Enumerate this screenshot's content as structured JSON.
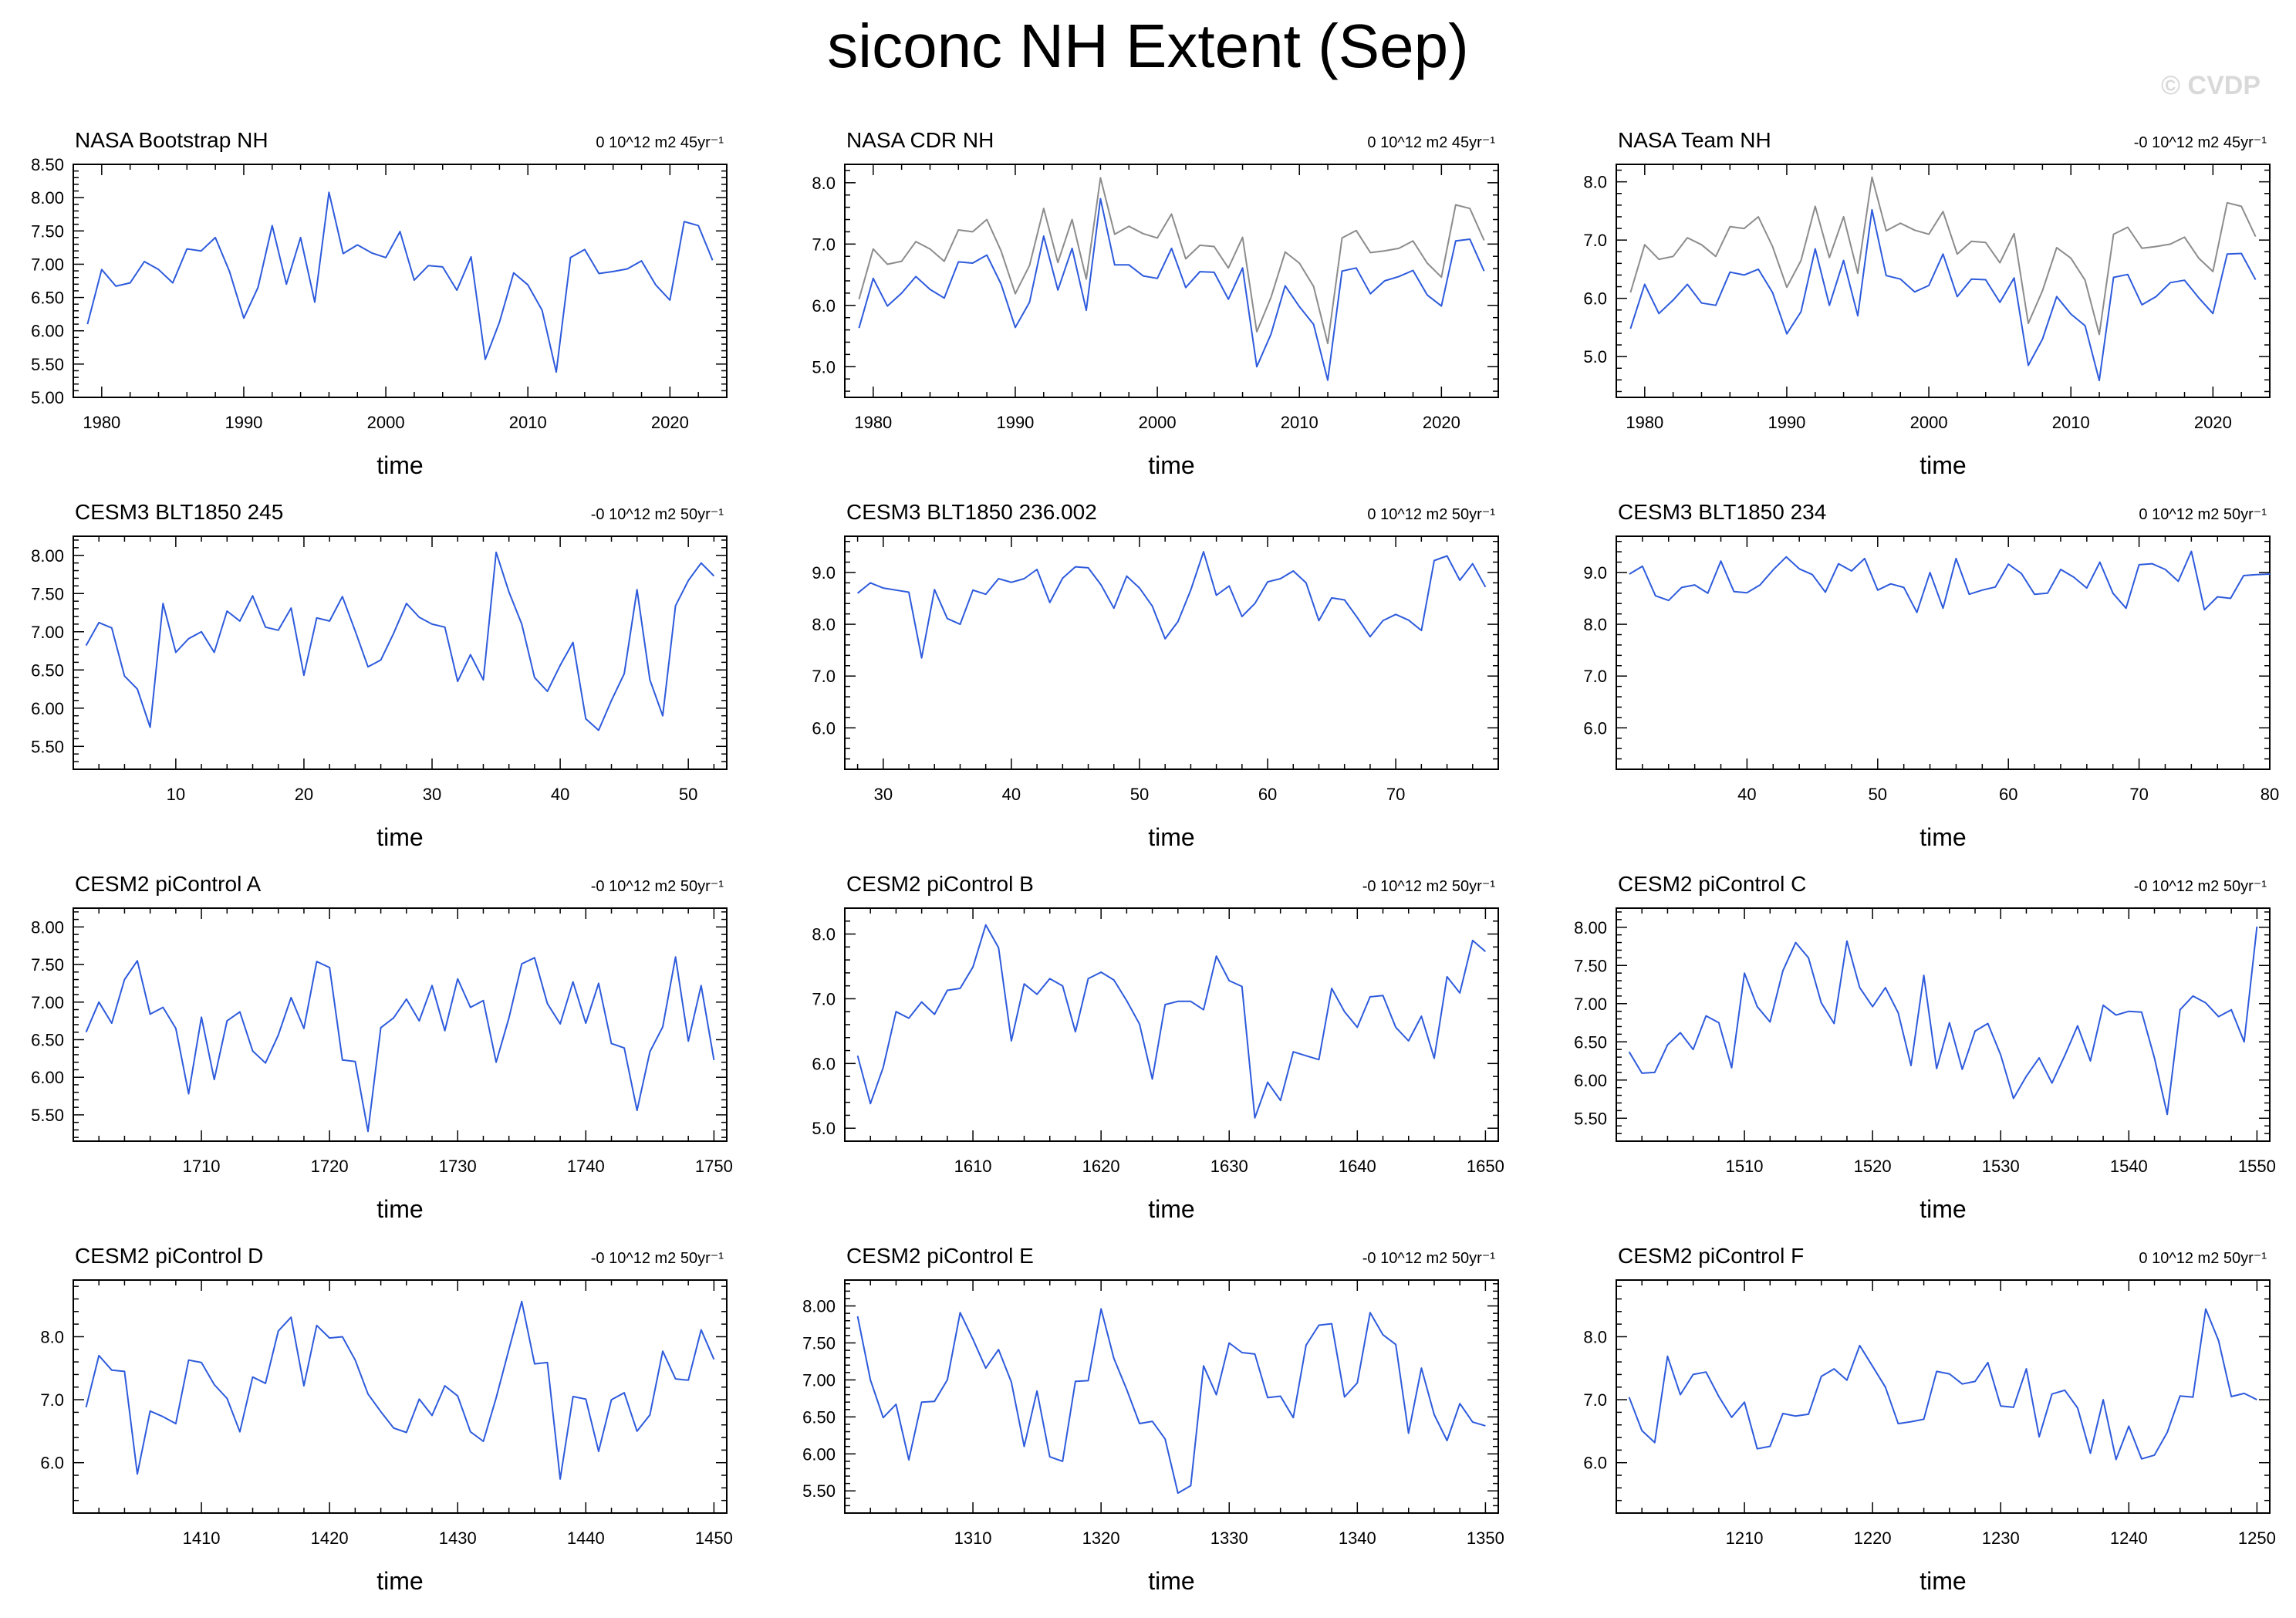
{
  "page": {
    "title": "siconc NH Extent (Sep)",
    "watermark": "© CVDP"
  },
  "chart_data": [
    {
      "type": "line",
      "title": "NASA Bootstrap NH",
      "trend": "0 10^12 m2 45yr⁻¹",
      "xlabel": "time",
      "xlim": [
        1978,
        2024
      ],
      "xticks": [
        1980,
        1990,
        2000,
        2010,
        2020
      ],
      "ylim": [
        5.0,
        8.5
      ],
      "yticks": [
        "8.50",
        "8.00",
        "7.50",
        "7.00",
        "6.50",
        "6.00",
        "5.50",
        "5.00"
      ],
      "x_start": 1979,
      "series": [
        {
          "color": "#2e5bdc",
          "values": [
            6.1,
            6.92,
            6.67,
            6.72,
            7.04,
            6.92,
            6.72,
            7.23,
            7.2,
            7.4,
            6.89,
            6.19,
            6.65,
            7.58,
            6.7,
            7.4,
            6.43,
            8.08,
            7.16,
            7.29,
            7.17,
            7.1,
            7.49,
            6.76,
            6.98,
            6.96,
            6.61,
            7.11,
            5.57,
            6.13,
            6.87,
            6.69,
            6.31,
            5.38,
            7.1,
            7.22,
            6.86,
            6.89,
            6.93,
            7.05,
            6.69,
            6.46,
            7.64,
            7.58,
            7.06
          ]
        }
      ]
    },
    {
      "type": "line",
      "title": "NASA CDR NH",
      "trend": "0 10^12 m2 45yr⁻¹",
      "xlabel": "time",
      "xlim": [
        1978,
        2024
      ],
      "xticks": [
        1980,
        1990,
        2000,
        2010,
        2020
      ],
      "ylim": [
        4.5,
        8.3
      ],
      "yticks": [
        "8.0",
        "7.0",
        "6.0",
        "5.0"
      ],
      "x_start": 1979,
      "series": [
        {
          "color": "#8c8c8c",
          "values": [
            6.1,
            6.92,
            6.67,
            6.72,
            7.04,
            6.92,
            6.72,
            7.23,
            7.2,
            7.4,
            6.89,
            6.19,
            6.65,
            7.58,
            6.7,
            7.4,
            6.43,
            8.08,
            7.16,
            7.29,
            7.17,
            7.1,
            7.49,
            6.76,
            6.98,
            6.96,
            6.61,
            7.11,
            5.57,
            6.13,
            6.87,
            6.69,
            6.31,
            5.38,
            7.1,
            7.22,
            6.86,
            6.89,
            6.93,
            7.05,
            6.69,
            6.46,
            7.64,
            7.58,
            7.06
          ]
        },
        {
          "color": "#2e5bdc",
          "values": [
            5.63,
            6.44,
            5.99,
            6.2,
            6.47,
            6.26,
            6.12,
            6.71,
            6.69,
            6.82,
            6.35,
            5.64,
            6.05,
            7.13,
            6.25,
            6.93,
            5.92,
            7.74,
            6.66,
            6.66,
            6.48,
            6.44,
            6.93,
            6.29,
            6.55,
            6.54,
            6.1,
            6.61,
            5.0,
            5.53,
            6.32,
            5.98,
            5.69,
            4.78,
            6.56,
            6.61,
            6.19,
            6.4,
            6.47,
            6.57,
            6.17,
            5.99,
            7.05,
            7.08,
            6.56
          ]
        }
      ]
    },
    {
      "type": "line",
      "title": "NASA Team NH",
      "trend": "-0 10^12 m2 45yr⁻¹",
      "xlabel": "time",
      "xlim": [
        1978,
        2024
      ],
      "xticks": [
        1980,
        1990,
        2000,
        2010,
        2020
      ],
      "ylim": [
        4.3,
        8.3
      ],
      "yticks": [
        "8.0",
        "7.0",
        "6.0",
        "5.0"
      ],
      "x_start": 1979,
      "series": [
        {
          "color": "#8c8c8c",
          "values": [
            6.1,
            6.92,
            6.67,
            6.72,
            7.04,
            6.92,
            6.72,
            7.23,
            7.2,
            7.4,
            6.89,
            6.19,
            6.65,
            7.58,
            6.7,
            7.4,
            6.43,
            8.08,
            7.16,
            7.29,
            7.17,
            7.1,
            7.49,
            6.76,
            6.98,
            6.96,
            6.61,
            7.11,
            5.57,
            6.13,
            6.87,
            6.69,
            6.31,
            5.38,
            7.1,
            7.22,
            6.86,
            6.89,
            6.93,
            7.05,
            6.69,
            6.46,
            7.64,
            7.58,
            7.06
          ]
        },
        {
          "color": "#2e5bdc",
          "values": [
            5.48,
            6.24,
            5.74,
            5.97,
            6.24,
            5.92,
            5.88,
            6.45,
            6.4,
            6.5,
            6.1,
            5.39,
            5.77,
            6.85,
            5.88,
            6.65,
            5.7,
            7.52,
            6.39,
            6.33,
            6.11,
            6.22,
            6.76,
            6.03,
            6.33,
            6.32,
            5.93,
            6.35,
            4.85,
            5.3,
            6.03,
            5.73,
            5.53,
            4.59,
            6.36,
            6.41,
            5.89,
            6.03,
            6.27,
            6.31,
            6.01,
            5.74,
            6.76,
            6.77,
            6.32
          ]
        }
      ]
    },
    {
      "type": "line",
      "title": "CESM3 BLT1850 245",
      "trend": "-0 10^12 m2 50yr⁻¹",
      "xlabel": "time",
      "xlim": [
        2,
        53
      ],
      "xticks": [
        10,
        20,
        30,
        40,
        50
      ],
      "ylim": [
        5.2,
        8.25
      ],
      "yticks": [
        "8.00",
        "7.50",
        "7.00",
        "6.50",
        "6.00",
        "5.50"
      ],
      "x_start": 3,
      "series": [
        {
          "color": "#2e5bdc",
          "values": [
            6.82,
            7.12,
            7.05,
            6.42,
            6.25,
            5.75,
            7.37,
            6.73,
            6.91,
            7.0,
            6.73,
            7.27,
            7.14,
            7.47,
            7.06,
            7.02,
            7.31,
            6.43,
            7.18,
            7.14,
            7.46,
            7.01,
            6.54,
            6.63,
            6.98,
            7.37,
            7.19,
            7.1,
            7.06,
            6.35,
            6.7,
            6.37,
            8.04,
            7.52,
            7.1,
            6.4,
            6.22,
            6.56,
            6.86,
            5.86,
            5.71,
            6.1,
            6.45,
            7.55,
            6.37,
            5.9,
            7.34,
            7.67,
            7.9,
            7.73
          ]
        }
      ]
    },
    {
      "type": "line",
      "title": "CESM3 BLT1850 236.002",
      "trend": "0 10^12 m2 50yr⁻¹",
      "xlabel": "time",
      "xlim": [
        27,
        78
      ],
      "xticks": [
        30,
        40,
        50,
        60,
        70
      ],
      "ylim": [
        5.2,
        9.7
      ],
      "yticks": [
        "9.0",
        "8.0",
        "7.0",
        "6.0"
      ],
      "x_start": 28,
      "series": [
        {
          "color": "#2e5bdc",
          "values": [
            8.6,
            8.8,
            8.7,
            8.66,
            8.62,
            7.35,
            8.67,
            8.11,
            8.0,
            8.66,
            8.58,
            8.88,
            8.81,
            8.88,
            9.06,
            8.42,
            8.89,
            9.11,
            9.09,
            8.76,
            8.31,
            8.93,
            8.7,
            8.35,
            7.72,
            8.05,
            8.66,
            9.4,
            8.56,
            8.74,
            8.15,
            8.4,
            8.82,
            8.88,
            9.03,
            8.8,
            8.07,
            8.51,
            8.47,
            8.13,
            7.76,
            8.07,
            8.19,
            8.08,
            7.88,
            9.23,
            9.32,
            8.85,
            9.17,
            8.72
          ]
        }
      ]
    },
    {
      "type": "line",
      "title": "CESM3 BLT1850 234",
      "trend": "0 10^12 m2 50yr⁻¹",
      "xlabel": "time",
      "xlim": [
        30,
        80
      ],
      "xticks": [
        40,
        50,
        60,
        70,
        80
      ],
      "ylim": [
        5.2,
        9.7
      ],
      "yticks": [
        "9.0",
        "8.0",
        "7.0",
        "6.0"
      ],
      "x_start": 31,
      "series": [
        {
          "color": "#2e5bdc",
          "values": [
            8.97,
            9.12,
            8.55,
            8.46,
            8.71,
            8.76,
            8.6,
            9.22,
            8.63,
            8.61,
            8.76,
            9.05,
            9.3,
            9.07,
            8.96,
            8.62,
            9.17,
            9.03,
            9.27,
            8.66,
            8.78,
            8.71,
            8.23,
            9.0,
            8.31,
            9.27,
            8.58,
            8.66,
            8.72,
            9.16,
            8.98,
            8.58,
            8.6,
            9.06,
            8.91,
            8.7,
            9.2,
            8.6,
            8.31,
            9.15,
            9.17,
            9.06,
            8.83,
            9.41,
            8.28,
            8.53,
            8.5,
            8.94,
            8.96,
            8.97
          ]
        }
      ]
    },
    {
      "type": "line",
      "title": "CESM2 piControl A",
      "trend": "-0 10^12 m2 50yr⁻¹",
      "xlabel": "time",
      "xlim": [
        1700,
        1751
      ],
      "xticks": [
        1710,
        1720,
        1730,
        1740,
        1750
      ],
      "ylim": [
        5.15,
        8.25
      ],
      "yticks": [
        "8.00",
        "7.50",
        "7.00",
        "6.50",
        "6.00",
        "5.50"
      ],
      "x_start": 1701,
      "series": [
        {
          "color": "#2e5bdc",
          "values": [
            6.6,
            7.0,
            6.72,
            7.3,
            7.55,
            6.84,
            6.93,
            6.65,
            5.78,
            6.8,
            5.97,
            6.75,
            6.87,
            6.35,
            6.19,
            6.56,
            7.06,
            6.65,
            7.54,
            7.46,
            6.23,
            6.21,
            5.28,
            6.66,
            6.79,
            7.04,
            6.75,
            7.22,
            6.62,
            7.31,
            6.93,
            7.02,
            6.2,
            6.79,
            7.51,
            7.59,
            6.98,
            6.71,
            7.27,
            6.72,
            7.25,
            6.45,
            6.39,
            5.56,
            6.34,
            6.67,
            7.6,
            6.48,
            7.22,
            6.23
          ]
        }
      ]
    },
    {
      "type": "line",
      "title": "CESM2 piControl B",
      "trend": "-0 10^12 m2 50yr⁻¹",
      "xlabel": "time",
      "xlim": [
        1600,
        1651
      ],
      "xticks": [
        1610,
        1620,
        1630,
        1640,
        1650
      ],
      "ylim": [
        4.8,
        8.4
      ],
      "yticks": [
        "8.0",
        "7.0",
        "6.0",
        "5.0"
      ],
      "x_start": 1601,
      "series": [
        {
          "color": "#2e5bdc",
          "values": [
            6.12,
            5.38,
            5.94,
            6.8,
            6.7,
            6.95,
            6.76,
            7.13,
            7.16,
            7.49,
            8.14,
            7.79,
            6.35,
            7.23,
            7.07,
            7.31,
            7.2,
            6.49,
            7.31,
            7.41,
            7.29,
            6.97,
            6.61,
            5.76,
            6.91,
            6.96,
            6.96,
            6.83,
            7.66,
            7.28,
            7.19,
            5.16,
            5.71,
            5.43,
            6.18,
            6.12,
            6.06,
            7.16,
            6.8,
            6.56,
            7.03,
            7.05,
            6.56,
            6.35,
            6.73,
            6.08,
            7.34,
            7.09,
            7.9,
            7.73
          ]
        }
      ]
    },
    {
      "type": "line",
      "title": "CESM2 piControl C",
      "trend": "-0 10^12 m2 50yr⁻¹",
      "xlabel": "time",
      "xlim": [
        1500,
        1551
      ],
      "xticks": [
        1510,
        1520,
        1530,
        1540,
        1550
      ],
      "ylim": [
        5.2,
        8.25
      ],
      "yticks": [
        "8.00",
        "7.50",
        "7.00",
        "6.50",
        "6.00",
        "5.50"
      ],
      "x_start": 1501,
      "series": [
        {
          "color": "#2e5bdc",
          "values": [
            6.37,
            6.09,
            6.1,
            6.46,
            6.62,
            6.4,
            6.84,
            6.75,
            6.16,
            7.4,
            6.96,
            6.76,
            7.43,
            7.8,
            7.6,
            7.01,
            6.74,
            7.82,
            7.21,
            6.96,
            7.21,
            6.88,
            6.19,
            7.37,
            6.15,
            6.75,
            6.14,
            6.64,
            6.74,
            6.33,
            5.76,
            6.05,
            6.29,
            5.96,
            6.32,
            6.71,
            6.25,
            6.98,
            6.85,
            6.9,
            6.89,
            6.29,
            5.55,
            6.92,
            7.1,
            7.01,
            6.83,
            6.92,
            6.5,
            8.01
          ]
        }
      ]
    },
    {
      "type": "line",
      "title": "CESM2 piControl D",
      "trend": "-0 10^12 m2 50yr⁻¹",
      "xlabel": "time",
      "xlim": [
        1400,
        1451
      ],
      "xticks": [
        1410,
        1420,
        1430,
        1440,
        1450
      ],
      "ylim": [
        5.2,
        8.9
      ],
      "yticks": [
        "8.0",
        "7.0",
        "6.0"
      ],
      "x_start": 1401,
      "series": [
        {
          "color": "#2e5bdc",
          "values": [
            6.88,
            7.7,
            7.47,
            7.45,
            5.82,
            6.82,
            6.73,
            6.62,
            7.63,
            7.59,
            7.24,
            7.02,
            6.49,
            7.36,
            7.26,
            8.09,
            8.31,
            7.22,
            8.18,
            7.98,
            8.0,
            7.63,
            7.09,
            6.81,
            6.55,
            6.48,
            7.01,
            6.75,
            7.22,
            7.06,
            6.49,
            6.34,
            7.03,
            7.8,
            8.56,
            7.57,
            7.59,
            5.74,
            7.05,
            7.01,
            6.18,
            7.0,
            7.11,
            6.5,
            6.76,
            7.77,
            7.33,
            7.31,
            8.11,
            7.64
          ]
        }
      ]
    },
    {
      "type": "line",
      "title": "CESM2 piControl E",
      "trend": "-0 10^12 m2 50yr⁻¹",
      "xlabel": "time",
      "xlim": [
        1300,
        1351
      ],
      "xticks": [
        1310,
        1320,
        1330,
        1340,
        1350
      ],
      "ylim": [
        5.2,
        8.35
      ],
      "yticks": [
        "8.00",
        "7.50",
        "7.00",
        "6.50",
        "6.00",
        "5.50"
      ],
      "x_start": 1301,
      "series": [
        {
          "color": "#2e5bdc",
          "values": [
            7.86,
            7.0,
            6.49,
            6.67,
            5.92,
            6.7,
            6.71,
            7.0,
            7.91,
            7.55,
            7.16,
            7.41,
            6.97,
            6.1,
            6.85,
            5.96,
            5.9,
            6.98,
            6.99,
            7.96,
            7.29,
            6.87,
            6.41,
            6.44,
            6.2,
            5.47,
            5.57,
            7.19,
            6.8,
            7.5,
            7.37,
            7.35,
            6.76,
            6.78,
            6.49,
            7.47,
            7.74,
            7.76,
            6.77,
            6.96,
            7.91,
            7.61,
            7.48,
            6.28,
            7.16,
            6.53,
            6.18,
            6.68,
            6.43,
            6.38
          ]
        }
      ]
    },
    {
      "type": "line",
      "title": "CESM2 piControl F",
      "trend": "0 10^12 m2 50yr⁻¹",
      "xlabel": "time",
      "xlim": [
        1200,
        1251
      ],
      "xticks": [
        1210,
        1220,
        1230,
        1240,
        1250
      ],
      "ylim": [
        5.2,
        8.9
      ],
      "yticks": [
        "8.0",
        "7.0",
        "6.0"
      ],
      "x_start": 1201,
      "series": [
        {
          "color": "#2e5bdc",
          "values": [
            7.04,
            6.51,
            6.32,
            7.69,
            7.08,
            7.4,
            7.44,
            7.05,
            6.72,
            6.96,
            6.22,
            6.26,
            6.78,
            6.74,
            6.77,
            7.37,
            7.49,
            7.31,
            7.86,
            7.53,
            7.2,
            6.62,
            6.65,
            6.69,
            7.45,
            7.41,
            7.25,
            7.29,
            7.59,
            6.9,
            6.88,
            7.49,
            6.41,
            7.09,
            7.15,
            6.87,
            6.15,
            7.0,
            6.05,
            6.58,
            6.06,
            6.12,
            6.48,
            7.06,
            7.04,
            8.44,
            7.94,
            7.05,
            7.1,
            7.0
          ]
        }
      ]
    }
  ]
}
